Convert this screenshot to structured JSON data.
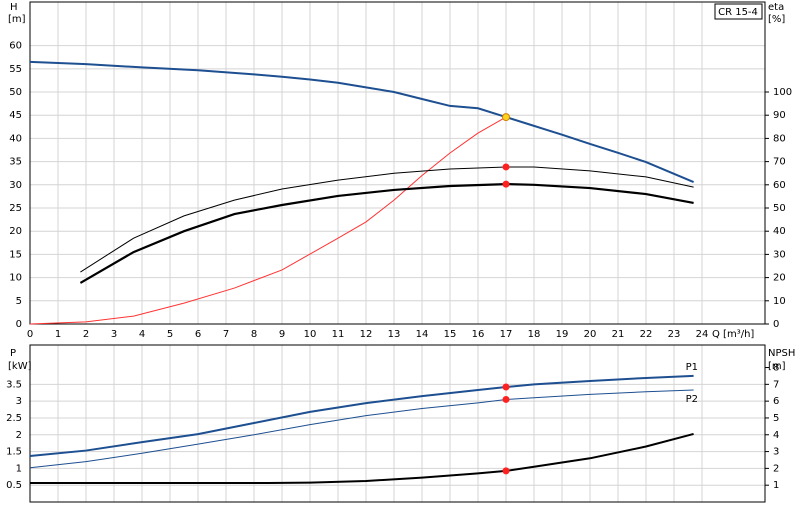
{
  "chart_data": [
    {
      "type": "line",
      "label": "CR 15-4",
      "ylabel": "H",
      "yunit": "[m]",
      "y2label": "eta",
      "y2unit": "[%]",
      "xlabel": "Q [m³/h]",
      "xlim": [
        0,
        26.25
      ],
      "xticks": [
        0,
        1,
        2,
        3,
        4,
        5,
        6,
        7,
        8,
        9,
        10,
        11,
        12,
        13,
        14,
        15,
        16,
        17,
        18,
        19,
        20,
        21,
        22,
        23,
        24
      ],
      "ylim": [
        0,
        69.4
      ],
      "yticks": [
        0,
        5,
        10,
        15,
        20,
        25,
        30,
        35,
        40,
        45,
        50,
        55,
        60
      ],
      "y2lim": [
        0,
        138.8
      ],
      "y2ticks": [
        0,
        10,
        20,
        30,
        40,
        50,
        60,
        70,
        80,
        90,
        100
      ],
      "grid": true,
      "marker_x": 17,
      "series": [
        {
          "color": "#1d4f91",
          "width": 2,
          "marker_color": "#ffd21f",
          "x": [
            0,
            2,
            4,
            6,
            8,
            9,
            10,
            11,
            12,
            13,
            14,
            15,
            16,
            17,
            18,
            19,
            20,
            21,
            22,
            23.7
          ],
          "values": [
            56.5,
            56,
            55.3,
            54.7,
            53.8,
            53.3,
            52.7,
            52,
            51,
            50,
            48.5,
            47,
            46.5,
            44.6,
            42.7,
            40.8,
            38.8,
            36.9,
            34.9,
            30.6
          ]
        },
        {
          "color": "#ff3333",
          "width": 1,
          "axis": "y2",
          "x": [
            0,
            2,
            3.7,
            5.5,
            7.3,
            9,
            11,
            12,
            13,
            14,
            15,
            16,
            17
          ],
          "values": [
            0,
            0.9,
            3.4,
            9,
            15.5,
            23.3,
            37,
            44,
            53.4,
            64,
            73.7,
            82.3,
            89.2
          ]
        },
        {
          "color": "#000000",
          "width": 1,
          "axis": "y2",
          "marker_color": "#ff2020",
          "x": [
            1.8,
            3.7,
            5.5,
            7.3,
            9,
            11,
            13,
            15,
            17,
            18,
            20,
            22,
            23.7
          ],
          "values": [
            22.4,
            37,
            46.6,
            53.4,
            58.2,
            62,
            65,
            66.8,
            67.7,
            67.7,
            66,
            63.4,
            59
          ]
        },
        {
          "color": "#000000",
          "width": 2.2,
          "axis": "y2",
          "marker_color": "#ff2020",
          "x": [
            1.8,
            3.7,
            5.5,
            7.3,
            9,
            11,
            13,
            15,
            17,
            18,
            20,
            22,
            23.7
          ],
          "values": [
            17.7,
            31,
            40,
            47.4,
            51.3,
            55.2,
            57.8,
            59.5,
            60.3,
            60,
            58.6,
            56,
            52.2
          ]
        }
      ]
    },
    {
      "type": "line",
      "ylabel": "P",
      "yunit": "[kW]",
      "y2label": "NPSH",
      "y2unit": "[m]",
      "ylim": [
        0,
        4.67
      ],
      "yticks": [
        0.5,
        1.0,
        1.5,
        2.0,
        2.5,
        3.0,
        3.5
      ],
      "y2lim": [
        0,
        9.34
      ],
      "y2ticks": [
        1,
        2,
        3,
        4,
        5,
        6,
        7,
        8
      ],
      "grid": true,
      "marker_x": 17,
      "series": [
        {
          "name": "P1",
          "color": "#1d4f91",
          "width": 2,
          "marker_color": "#ff2020",
          "x": [
            0,
            2,
            4,
            6,
            8,
            10,
            12,
            14,
            16,
            17,
            18,
            20,
            22,
            23.7
          ],
          "values": [
            1.37,
            1.53,
            1.78,
            2.02,
            2.35,
            2.68,
            2.94,
            3.15,
            3.33,
            3.42,
            3.5,
            3.6,
            3.69,
            3.75
          ]
        },
        {
          "name": "P2",
          "color": "#1d4f91",
          "width": 1,
          "marker_color": "#ff2020",
          "x": [
            0,
            2,
            4,
            6,
            8,
            10,
            12,
            14,
            16,
            17,
            18,
            20,
            22,
            23.7
          ],
          "values": [
            1.02,
            1.2,
            1.45,
            1.72,
            2.0,
            2.3,
            2.57,
            2.78,
            2.95,
            3.05,
            3.1,
            3.2,
            3.28,
            3.33
          ]
        },
        {
          "color": "#000000",
          "width": 2,
          "axis": "y2",
          "marker_color": "#ff2020",
          "x": [
            0,
            4,
            8.5,
            10,
            12,
            14,
            16,
            17,
            18,
            20,
            22,
            23.7
          ],
          "values": [
            1.13,
            1.13,
            1.13,
            1.15,
            1.25,
            1.45,
            1.7,
            1.85,
            2.1,
            2.6,
            3.3,
            4.05
          ]
        }
      ]
    }
  ]
}
